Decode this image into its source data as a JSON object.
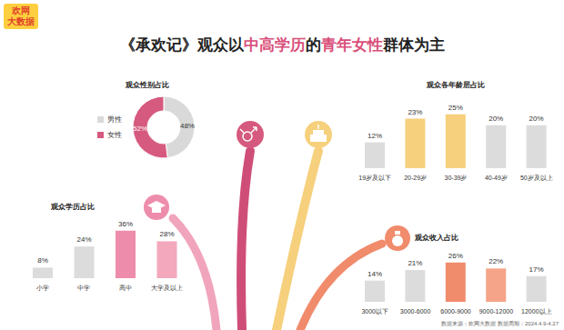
{
  "logo": "欢网大数据",
  "title": "《承欢记》观众以中高学历的青年女性群体为主",
  "title_highlights": [
    "中高学历",
    "青年女性"
  ],
  "source": "数据来源：欢网大数据 数据周期：2024.4.9-4.27",
  "chart_data": [
    {
      "type": "pie",
      "title": "观众性别占比",
      "categories": [
        "男性",
        "女性"
      ],
      "values": [
        48,
        52
      ],
      "value_labels": [
        "48%",
        "52%"
      ],
      "colors": [
        "#d9d9d9",
        "#d65a7f"
      ],
      "data_labels": true,
      "legend": "left"
    },
    {
      "type": "bar",
      "title": "观众各年龄层占比",
      "categories": [
        "19岁及以下",
        "20-29岁",
        "30-39岁",
        "40-49岁",
        "50岁及以上"
      ],
      "values": [
        12,
        23,
        25,
        20,
        20
      ],
      "value_labels": [
        "12%",
        "23%",
        "25%",
        "20%",
        "20%"
      ],
      "colors": [
        "#dcdcdc",
        "#f6d07c",
        "#f6d07c",
        "#dcdcdc",
        "#dcdcdc"
      ],
      "ylim": [
        0,
        30
      ],
      "data_labels": true,
      "tick_labels": "x"
    },
    {
      "type": "bar",
      "title": "观众学历占比",
      "categories": [
        "小学",
        "中学",
        "高中",
        "大学及以上"
      ],
      "values": [
        8,
        24,
        36,
        28
      ],
      "value_labels": [
        "8%",
        "24%",
        "36%",
        "28%"
      ],
      "colors": [
        "#dcdcdc",
        "#dcdcdc",
        "#ee8dab",
        "#f3a8be"
      ],
      "ylim": [
        0,
        40
      ],
      "data_labels": true,
      "tick_labels": "x"
    },
    {
      "type": "bar",
      "title": "观众收入占比",
      "categories": [
        "3000以下",
        "3000-6000",
        "6000-9000",
        "9000-12000",
        "12000以上"
      ],
      "values": [
        14,
        21,
        26,
        22,
        17
      ],
      "value_labels": [
        "14%",
        "21%",
        "26%",
        "22%",
        "17%"
      ],
      "colors": [
        "#dcdcdc",
        "#dcdcdc",
        "#f08b6c",
        "#f5a489",
        "#dcdcdc"
      ],
      "ylim": [
        0,
        30
      ],
      "data_labels": true,
      "tick_labels": "x"
    }
  ]
}
